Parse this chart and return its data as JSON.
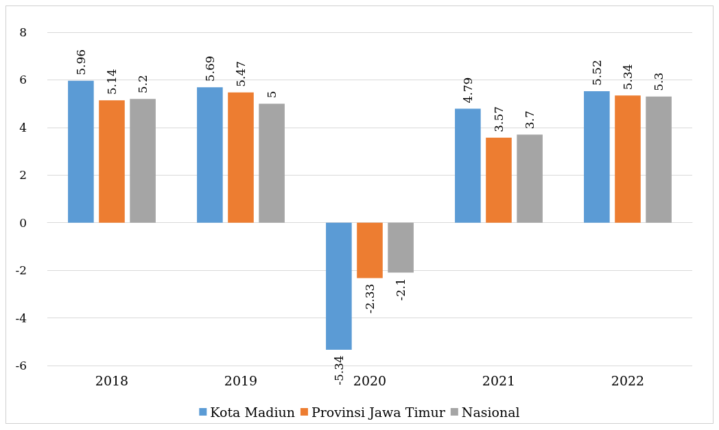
{
  "chart_data": {
    "type": "bar",
    "categories": [
      "2018",
      "2019",
      "2020",
      "2021",
      "2022"
    ],
    "series": [
      {
        "name": "Kota Madiun",
        "color": "#5b9bd5",
        "values": [
          5.96,
          5.69,
          -5.34,
          4.79,
          5.52
        ]
      },
      {
        "name": "Provinsi Jawa Timur",
        "color": "#ed7d31",
        "values": [
          5.14,
          5.47,
          -2.33,
          3.57,
          5.34
        ]
      },
      {
        "name": "Nasional",
        "color": "#a5a5a5",
        "values": [
          5.2,
          5,
          -2.1,
          3.7,
          5.3
        ]
      }
    ],
    "ylim": [
      -6,
      8
    ],
    "yticks": [
      -6,
      -4,
      -2,
      0,
      2,
      4,
      6,
      8
    ],
    "grid": "y",
    "legend": "bottom",
    "data_labels": true
  }
}
